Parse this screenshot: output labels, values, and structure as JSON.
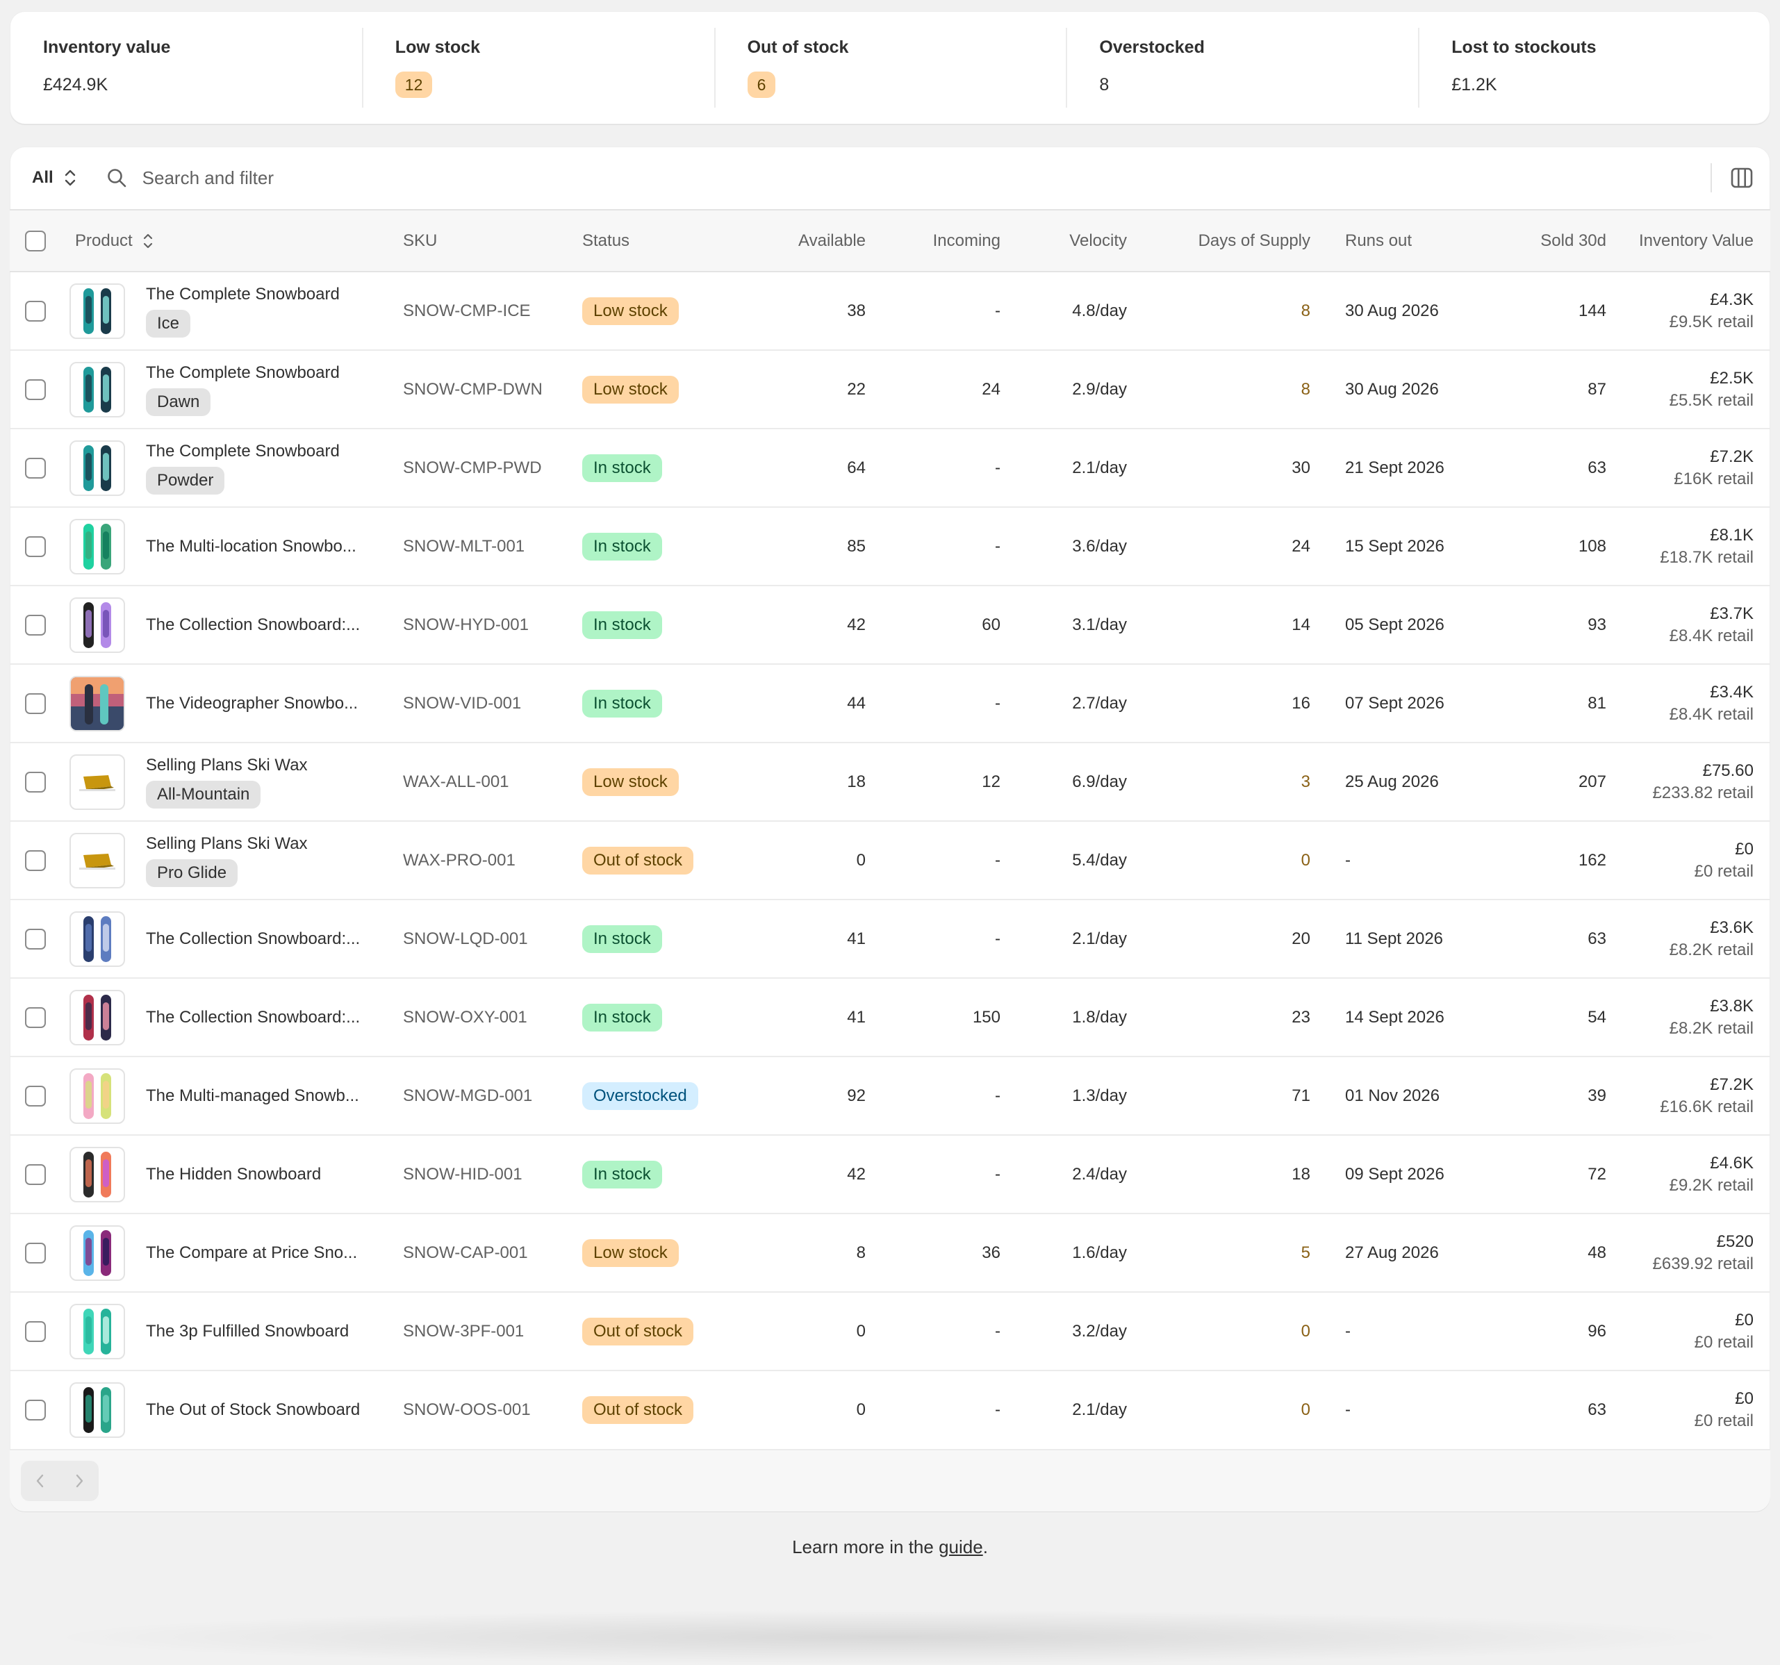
{
  "metrics": [
    {
      "label": "Inventory value",
      "value": "£424.9K",
      "pill": false
    },
    {
      "label": "Low stock",
      "value": "12",
      "pill": true
    },
    {
      "label": "Out of stock",
      "value": "6",
      "pill": true
    },
    {
      "label": "Overstocked",
      "value": "8",
      "pill": false
    },
    {
      "label": "Lost to stockouts",
      "value": "£1.2K",
      "pill": false
    }
  ],
  "toolbar": {
    "view": "All",
    "search_placeholder": "Search and filter"
  },
  "columns": [
    "Product",
    "SKU",
    "Status",
    "Available",
    "Incoming",
    "Velocity",
    "Days of Supply",
    "Runs out",
    "Sold 30d",
    "Inventory Value"
  ],
  "colors": {
    "low": "#ffd6a4",
    "in": "#aff4c6",
    "over": "#d4eeff"
  },
  "rows": [
    {
      "product": "The Complete Snowboard",
      "variant": "Ice",
      "thumb": "snowboard-teal",
      "sku": "SNOW-CMP-ICE",
      "status": "Low stock",
      "status_kind": "low",
      "available": "38",
      "incoming": "-",
      "velocity": "4.8/day",
      "days": "8",
      "days_warn": true,
      "runs_out": "30 Aug 2026",
      "sold": "144",
      "value": "£4.3K",
      "retail": "£9.5K retail"
    },
    {
      "product": "The Complete Snowboard",
      "variant": "Dawn",
      "thumb": "snowboard-teal",
      "sku": "SNOW-CMP-DWN",
      "status": "Low stock",
      "status_kind": "low",
      "available": "22",
      "incoming": "24",
      "velocity": "2.9/day",
      "days": "8",
      "days_warn": true,
      "runs_out": "30 Aug 2026",
      "sold": "87",
      "value": "£2.5K",
      "retail": "£5.5K retail"
    },
    {
      "product": "The Complete Snowboard",
      "variant": "Powder",
      "thumb": "snowboard-teal",
      "sku": "SNOW-CMP-PWD",
      "status": "In stock",
      "status_kind": "in",
      "available": "64",
      "incoming": "-",
      "velocity": "2.1/day",
      "days": "30",
      "days_warn": false,
      "runs_out": "21 Sept 2026",
      "sold": "63",
      "value": "£7.2K",
      "retail": "£16K retail"
    },
    {
      "product": "The Multi-location Snowbo...",
      "variant": "",
      "thumb": "snowboard-green",
      "sku": "SNOW-MLT-001",
      "status": "In stock",
      "status_kind": "in",
      "available": "85",
      "incoming": "-",
      "velocity": "3.6/day",
      "days": "24",
      "days_warn": false,
      "runs_out": "15 Sept 2026",
      "sold": "108",
      "value": "£8.1K",
      "retail": "£18.7K retail"
    },
    {
      "product": "The Collection Snowboard:...",
      "variant": "",
      "thumb": "snowboard-purple",
      "sku": "SNOW-HYD-001",
      "status": "In stock",
      "status_kind": "in",
      "available": "42",
      "incoming": "60",
      "velocity": "3.1/day",
      "days": "14",
      "days_warn": false,
      "runs_out": "05 Sept 2026",
      "sold": "93",
      "value": "£3.7K",
      "retail": "£8.4K retail"
    },
    {
      "product": "The Videographer Snowbo...",
      "variant": "",
      "thumb": "snowboard-photo",
      "sku": "SNOW-VID-001",
      "status": "In stock",
      "status_kind": "in",
      "available": "44",
      "incoming": "-",
      "velocity": "2.7/day",
      "days": "16",
      "days_warn": false,
      "runs_out": "07 Sept 2026",
      "sold": "81",
      "value": "£3.4K",
      "retail": "£8.4K retail"
    },
    {
      "product": "Selling Plans Ski Wax",
      "variant": "All-Mountain",
      "thumb": "wax",
      "sku": "WAX-ALL-001",
      "status": "Low stock",
      "status_kind": "low",
      "available": "18",
      "incoming": "12",
      "velocity": "6.9/day",
      "days": "3",
      "days_warn": true,
      "runs_out": "25 Aug 2026",
      "sold": "207",
      "value": "£75.60",
      "retail": "£233.82 retail"
    },
    {
      "product": "Selling Plans Ski Wax",
      "variant": "Pro Glide",
      "thumb": "wax",
      "sku": "WAX-PRO-001",
      "status": "Out of stock",
      "status_kind": "out",
      "available": "0",
      "incoming": "-",
      "velocity": "5.4/day",
      "days": "0",
      "days_warn": true,
      "runs_out": "-",
      "sold": "162",
      "value": "£0",
      "retail": "£0 retail"
    },
    {
      "product": "The Collection Snowboard:...",
      "variant": "",
      "thumb": "snowboard-navy",
      "sku": "SNOW-LQD-001",
      "status": "In stock",
      "status_kind": "in",
      "available": "41",
      "incoming": "-",
      "velocity": "2.1/day",
      "days": "20",
      "days_warn": false,
      "runs_out": "11 Sept 2026",
      "sold": "63",
      "value": "£3.6K",
      "retail": "£8.2K retail"
    },
    {
      "product": "The Collection Snowboard:...",
      "variant": "",
      "thumb": "snowboard-red",
      "sku": "SNOW-OXY-001",
      "status": "In stock",
      "status_kind": "in",
      "available": "41",
      "incoming": "150",
      "velocity": "1.8/day",
      "days": "23",
      "days_warn": false,
      "runs_out": "14 Sept 2026",
      "sold": "54",
      "value": "£3.8K",
      "retail": "£8.2K retail"
    },
    {
      "product": "The Multi-managed Snowb...",
      "variant": "",
      "thumb": "snowboard-pastel",
      "sku": "SNOW-MGD-001",
      "status": "Overstocked",
      "status_kind": "over",
      "available": "92",
      "incoming": "-",
      "velocity": "1.3/day",
      "days": "71",
      "days_warn": false,
      "runs_out": "01 Nov 2026",
      "sold": "39",
      "value": "£7.2K",
      "retail": "£16.6K retail"
    },
    {
      "product": "The Hidden Snowboard",
      "variant": "",
      "thumb": "snowboard-sunset",
      "sku": "SNOW-HID-001",
      "status": "In stock",
      "status_kind": "in",
      "available": "42",
      "incoming": "-",
      "velocity": "2.4/day",
      "days": "18",
      "days_warn": false,
      "runs_out": "09 Sept 2026",
      "sold": "72",
      "value": "£4.6K",
      "retail": "£9.2K retail"
    },
    {
      "product": "The Compare at Price Sno...",
      "variant": "",
      "thumb": "snowboard-galaxy",
      "sku": "SNOW-CAP-001",
      "status": "Low stock",
      "status_kind": "low",
      "available": "8",
      "incoming": "36",
      "velocity": "1.6/day",
      "days": "5",
      "days_warn": true,
      "runs_out": "27 Aug 2026",
      "sold": "48",
      "value": "£520",
      "retail": "£639.92 retail"
    },
    {
      "product": "The 3p Fulfilled Snowboard",
      "variant": "",
      "thumb": "snowboard-mint",
      "sku": "SNOW-3PF-001",
      "status": "Out of stock",
      "status_kind": "out",
      "available": "0",
      "incoming": "-",
      "velocity": "3.2/day",
      "days": "0",
      "days_warn": true,
      "runs_out": "-",
      "sold": "96",
      "value": "£0",
      "retail": "£0 retail"
    },
    {
      "product": "The Out of Stock Snowboard",
      "variant": "",
      "thumb": "snowboard-dark",
      "sku": "SNOW-OOS-001",
      "status": "Out of stock",
      "status_kind": "out",
      "available": "0",
      "incoming": "-",
      "velocity": "2.1/day",
      "days": "0",
      "days_warn": true,
      "runs_out": "-",
      "sold": "63",
      "value": "£0",
      "retail": "£0 retail"
    }
  ],
  "footer": {
    "text": "Learn more in the ",
    "link": "guide",
    "end": "."
  }
}
